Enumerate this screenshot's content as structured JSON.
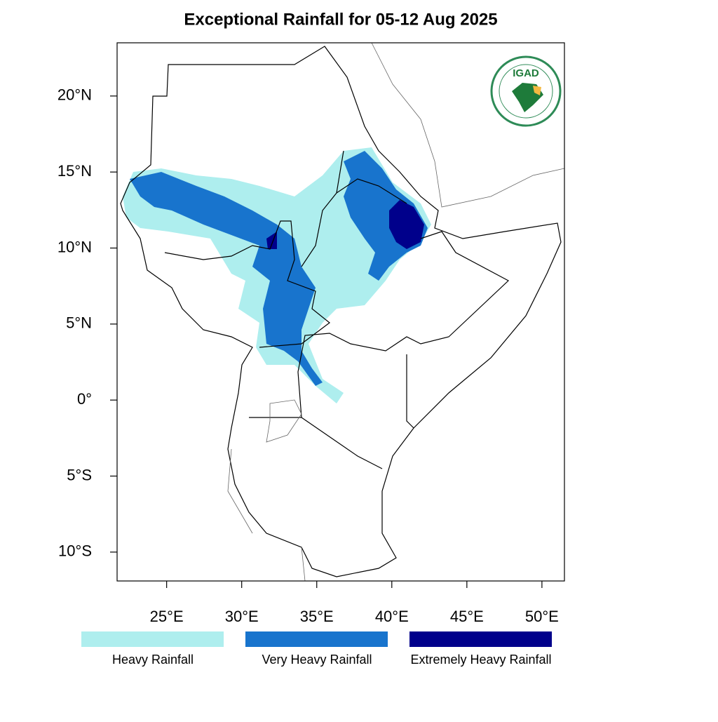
{
  "title": "Exceptional Rainfall for 05-12 Aug 2025",
  "map": {
    "xlim": [
      21.7,
      51.5
    ],
    "ylim": [
      -11.9,
      23.5
    ],
    "xticks": [
      {
        "value": 25,
        "label": "25°E"
      },
      {
        "value": 30,
        "label": "30°E"
      },
      {
        "value": 35,
        "label": "35°E"
      },
      {
        "value": 40,
        "label": "40°E"
      },
      {
        "value": 45,
        "label": "45°E"
      },
      {
        "value": 50,
        "label": "50°E"
      }
    ],
    "yticks": [
      {
        "value": 20,
        "label": "20°N"
      },
      {
        "value": 15,
        "label": "15°N"
      },
      {
        "value": 10,
        "label": "10°N"
      },
      {
        "value": 5,
        "label": "5°N"
      },
      {
        "value": 0,
        "label": "0°"
      },
      {
        "value": -5,
        "label": "5°S"
      },
      {
        "value": -10,
        "label": "10°S"
      }
    ]
  },
  "legend": [
    {
      "name": "Heavy Rainfall",
      "color": "#aeeeee"
    },
    {
      "name": "Very Heavy Rainfall",
      "color": "#1874cd"
    },
    {
      "name": "Extremely Heavy Rainfall",
      "color": "#00008b"
    }
  ],
  "logo": {
    "label": "IGAD"
  }
}
